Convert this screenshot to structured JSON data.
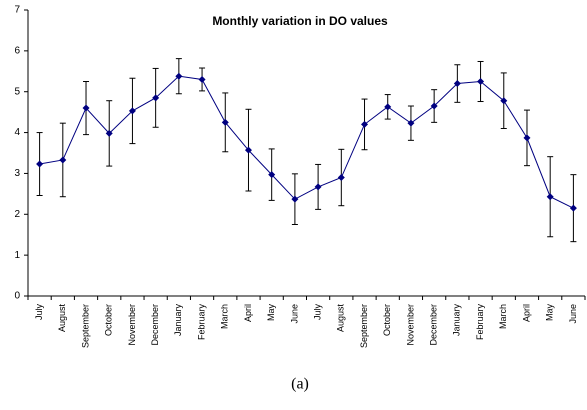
{
  "chart_data": {
    "type": "line",
    "title": "Monthly variation in DO values",
    "categories": [
      "July",
      "August",
      "September",
      "October",
      "November",
      "December",
      "January",
      "February",
      "March",
      "April",
      "May",
      "June",
      "July",
      "August",
      "September",
      "October",
      "November",
      "December",
      "January",
      "February",
      "March",
      "April",
      "May",
      "June"
    ],
    "series": [
      {
        "color": "#000080",
        "values": [
          3.23,
          3.33,
          4.6,
          3.98,
          4.53,
          4.85,
          5.38,
          5.3,
          4.25,
          3.57,
          2.97,
          2.37,
          2.67,
          2.9,
          4.2,
          4.63,
          4.23,
          4.65,
          5.2,
          5.25,
          4.78,
          3.87,
          2.43,
          2.15
        ],
        "errors": [
          0.77,
          0.9,
          0.65,
          0.8,
          0.8,
          0.72,
          0.43,
          0.28,
          0.72,
          1.0,
          0.63,
          0.62,
          0.55,
          0.69,
          0.62,
          0.3,
          0.42,
          0.4,
          0.46,
          0.49,
          0.68,
          0.68,
          0.98,
          0.82
        ]
      }
    ],
    "ylim": [
      0,
      7
    ],
    "yticks": [
      0,
      1,
      2,
      3,
      4,
      5,
      6,
      7
    ],
    "grid": false
  },
  "caption": "(a)"
}
